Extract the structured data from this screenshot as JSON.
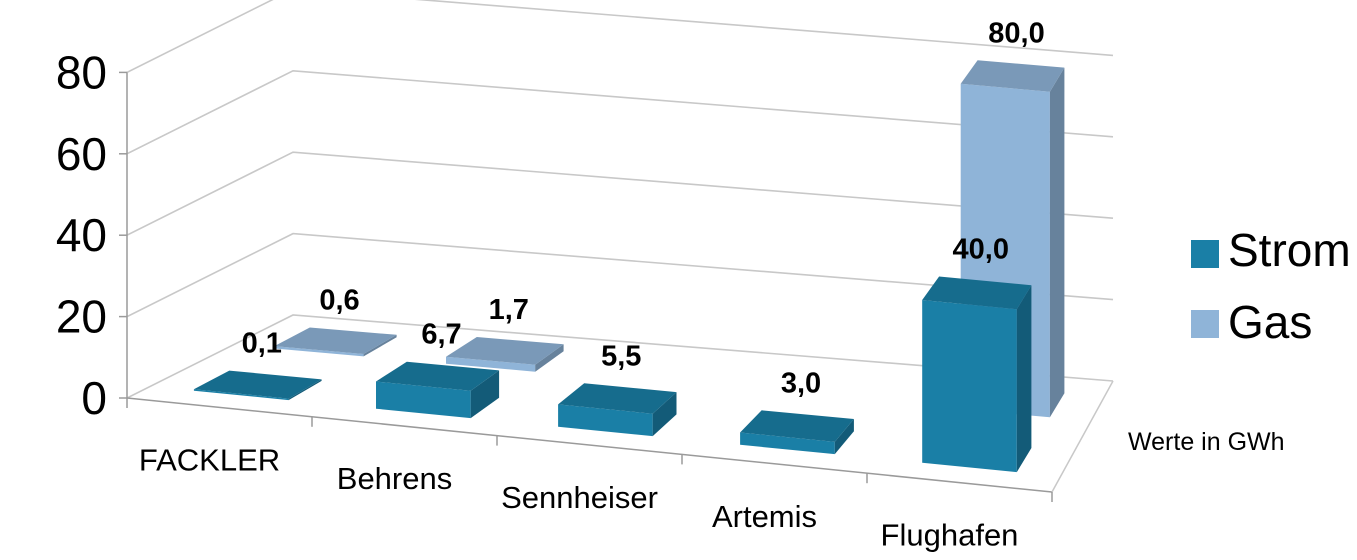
{
  "chart_data": {
    "type": "bar",
    "categories": [
      "FACKLER",
      "Behrens",
      "Sennheiser",
      "Artemis",
      "Flughafen"
    ],
    "series": [
      {
        "name": "Strom",
        "values": [
          0.1,
          6.7,
          5.5,
          3.0,
          40.0
        ],
        "labels": [
          "0,1",
          "6,7",
          "5,5",
          "3,0",
          "40,0"
        ],
        "color": "#1A7FA6"
      },
      {
        "name": "Gas",
        "values": [
          0.6,
          1.7,
          null,
          null,
          80.0
        ],
        "labels": [
          "0,6",
          "1,7",
          "",
          "",
          "80,0"
        ],
        "color": "#8FB4D8"
      }
    ],
    "yticks": [
      "0",
      "20",
      "40",
      "60",
      "80"
    ],
    "ylim": [
      0,
      80
    ],
    "legend_position": "right",
    "grid": true,
    "style": "3d-column",
    "annotation": "Werte in GWh"
  }
}
